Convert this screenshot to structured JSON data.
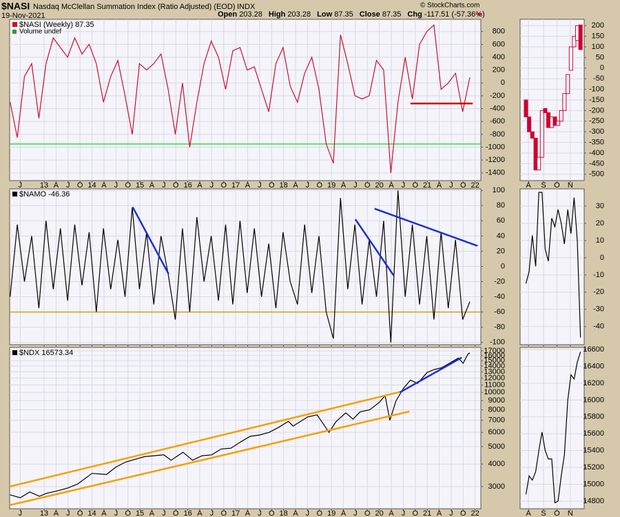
{
  "header": {
    "symbol": "$NASI",
    "title": "Nasdaq McClellan Summation Index (Ratio Adjusted) (EOD)",
    "exchange": "INDX",
    "date": "19-Nov-2021",
    "quote": [
      [
        "Open",
        "203.28"
      ],
      [
        "High",
        "203.28"
      ],
      [
        "Low",
        "87.35"
      ],
      [
        "Close",
        "87.35"
      ],
      [
        "Chg",
        "-117.51 (-57.36%)"
      ]
    ],
    "credit": "© StockCharts.com"
  },
  "x_axes": [
    {
      "xlim": [
        2012.28,
        2022.12
      ],
      "xticks": [
        {
          "value": 2012.5,
          "label": "J"
        },
        {
          "value": 2013,
          "label": "13"
        },
        {
          "value": 2013.25,
          "label": "A"
        },
        {
          "value": 2013.5,
          "label": "J"
        },
        {
          "value": 2013.75,
          "label": "O"
        },
        {
          "value": 2014,
          "label": "14"
        },
        {
          "value": 2014.25,
          "label": "A"
        },
        {
          "value": 2014.5,
          "label": "J"
        },
        {
          "value": 2014.75,
          "label": "O"
        },
        {
          "value": 2015,
          "label": "15"
        },
        {
          "value": 2015.25,
          "label": "A"
        },
        {
          "value": 2015.5,
          "label": "J"
        },
        {
          "value": 2015.75,
          "label": "O"
        },
        {
          "value": 2016,
          "label": "16"
        },
        {
          "value": 2016.25,
          "label": "A"
        },
        {
          "value": 2016.5,
          "label": "J"
        },
        {
          "value": 2016.75,
          "label": "O"
        },
        {
          "value": 2017,
          "label": "17"
        },
        {
          "value": 2017.25,
          "label": "A"
        },
        {
          "value": 2017.5,
          "label": "J"
        },
        {
          "value": 2017.75,
          "label": "O"
        },
        {
          "value": 2018,
          "label": "18"
        },
        {
          "value": 2018.25,
          "label": "A"
        },
        {
          "value": 2018.5,
          "label": "J"
        },
        {
          "value": 2018.75,
          "label": "O"
        },
        {
          "value": 2019,
          "label": "19"
        },
        {
          "value": 2019.25,
          "label": "A"
        },
        {
          "value": 2019.5,
          "label": "J"
        },
        {
          "value": 2019.75,
          "label": "O"
        },
        {
          "value": 2020,
          "label": "20"
        },
        {
          "value": 2020.25,
          "label": "A"
        },
        {
          "value": 2020.5,
          "label": "J"
        },
        {
          "value": 2020.75,
          "label": "O"
        },
        {
          "value": 2021,
          "label": "21"
        },
        {
          "value": 2021.25,
          "label": "A"
        },
        {
          "value": 2021.5,
          "label": "J"
        },
        {
          "value": 2021.75,
          "label": "O"
        },
        {
          "value": 2022,
          "label": "22"
        }
      ]
    },
    {
      "xlim": [
        2021.53,
        2021.913
      ],
      "xticks": [
        {
          "value": 2021.58,
          "label": "A"
        },
        {
          "value": 2021.67,
          "label": "S"
        },
        {
          "value": 2021.75,
          "label": "O"
        },
        {
          "value": 2021.83,
          "label": "N"
        }
      ]
    }
  ],
  "chart_data": [
    {
      "type": "line",
      "x_axis": 0,
      "x_labels": true,
      "ylim": [
        -1520,
        990
      ],
      "yticks": [
        -1400,
        -1200,
        -1000,
        -800,
        -600,
        -400,
        -200,
        0,
        200,
        400,
        600,
        800
      ],
      "grid": true,
      "series": [
        {
          "name": "$NASI (Weekly) 87.35",
          "color": "#c8102e",
          "x": [
            2012.29,
            2012.44,
            2012.59,
            2012.74,
            2012.89,
            2013.04,
            2013.19,
            2013.34,
            2013.49,
            2013.64,
            2013.79,
            2013.94,
            2014.09,
            2014.24,
            2014.39,
            2014.54,
            2014.69,
            2014.84,
            2014.99,
            2015.14,
            2015.29,
            2015.44,
            2015.59,
            2015.74,
            2015.89,
            2016.04,
            2016.19,
            2016.34,
            2016.49,
            2016.64,
            2016.79,
            2016.94,
            2017.09,
            2017.24,
            2017.39,
            2017.54,
            2017.69,
            2017.84,
            2017.99,
            2018.14,
            2018.29,
            2018.44,
            2018.59,
            2018.74,
            2018.89,
            2019.04,
            2019.19,
            2019.34,
            2019.49,
            2019.64,
            2019.79,
            2019.94,
            2020.09,
            2020.24,
            2020.39,
            2020.54,
            2020.69,
            2020.84,
            2020.99,
            2021.14,
            2021.29,
            2021.44,
            2021.59,
            2021.74,
            2021.89
          ],
          "values": [
            -300,
            -850,
            100,
            300,
            -550,
            300,
            700,
            550,
            400,
            700,
            450,
            600,
            300,
            -300,
            100,
            350,
            -200,
            -800,
            300,
            200,
            300,
            450,
            -100,
            -800,
            0,
            -1000,
            -300,
            300,
            650,
            400,
            -100,
            500,
            550,
            200,
            250,
            -100,
            -450,
            300,
            550,
            -50,
            -300,
            150,
            400,
            -100,
            -950,
            -1250,
            750,
            300,
            -200,
            -250,
            -200,
            350,
            200,
            -1400,
            -300,
            400,
            -250,
            600,
            800,
            900,
            -100,
            0,
            150,
            -450,
            87.35
          ]
        }
      ],
      "legend_notes": [
        {
          "text": "Volume undef",
          "color": "#339933"
        }
      ],
      "hlines": [
        {
          "y": -950,
          "color": "#33dd33"
        }
      ],
      "trendlines": [
        {
          "x": [
            2020.65,
            2021.95
          ],
          "y": [
            -320,
            -320
          ],
          "color": "#cc0000"
        }
      ]
    },
    {
      "type": "candlestick",
      "x_axis": 1,
      "x_labels": true,
      "ylim": [
        -530,
        230
      ],
      "yticks": [
        -500,
        -450,
        -400,
        -350,
        -300,
        -250,
        -200,
        -150,
        -100,
        -50,
        0,
        50,
        100,
        150,
        200
      ],
      "grid": true,
      "up_color": "#ffffff",
      "down_color": "#cc0033",
      "stroke": "#cc0033",
      "x": [
        2021.565,
        2021.584,
        2021.603,
        2021.623,
        2021.642,
        2021.661,
        2021.68,
        2021.699,
        2021.719,
        2021.738,
        2021.757,
        2021.776,
        2021.795,
        2021.815,
        2021.834,
        2021.853,
        2021.872,
        2021.891
      ],
      "open": [
        -150,
        -230,
        -300,
        -330,
        -480,
        -420,
        -190,
        -210,
        -280,
        -230,
        -270,
        -250,
        -200,
        -120,
        -10,
        100,
        130,
        203.28
      ],
      "close": [
        -230,
        -300,
        -330,
        -480,
        -420,
        -200,
        -210,
        -280,
        -230,
        -270,
        -250,
        -200,
        -120,
        -30,
        100,
        150,
        200,
        87.35
      ]
    },
    {
      "type": "line",
      "x_axis": 0,
      "x_labels": false,
      "ylim": [
        -103,
        102
      ],
      "yticks": [
        -100,
        -80,
        -60,
        -40,
        -20,
        0,
        20,
        40,
        60,
        80,
        100
      ],
      "grid": true,
      "series": [
        {
          "name": "$NAMO -46.36",
          "color": "#000000",
          "x": [
            2012.29,
            2012.44,
            2012.59,
            2012.74,
            2012.89,
            2013.04,
            2013.19,
            2013.34,
            2013.49,
            2013.64,
            2013.79,
            2013.94,
            2014.09,
            2014.24,
            2014.39,
            2014.54,
            2014.69,
            2014.84,
            2014.99,
            2015.14,
            2015.29,
            2015.44,
            2015.59,
            2015.74,
            2015.89,
            2016.04,
            2016.19,
            2016.34,
            2016.49,
            2016.64,
            2016.79,
            2016.94,
            2017.09,
            2017.24,
            2017.39,
            2017.54,
            2017.69,
            2017.84,
            2017.99,
            2018.14,
            2018.29,
            2018.44,
            2018.59,
            2018.74,
            2018.89,
            2019.04,
            2019.19,
            2019.34,
            2019.49,
            2019.64,
            2019.79,
            2019.94,
            2020.09,
            2020.24,
            2020.39,
            2020.54,
            2020.69,
            2020.84,
            2020.99,
            2021.14,
            2021.29,
            2021.44,
            2021.59,
            2021.74,
            2021.89
          ],
          "values": [
            -40,
            55,
            -20,
            40,
            -55,
            60,
            -30,
            50,
            -45,
            55,
            -25,
            45,
            -60,
            50,
            -30,
            35,
            -40,
            78,
            -30,
            45,
            -50,
            40,
            -10,
            -70,
            50,
            -60,
            65,
            -20,
            40,
            -45,
            55,
            -50,
            60,
            -35,
            50,
            -40,
            30,
            -55,
            45,
            -20,
            -50,
            55,
            -35,
            40,
            -60,
            -95,
            90,
            -30,
            55,
            -50,
            35,
            -40,
            60,
            -100,
            100,
            -40,
            55,
            -50,
            40,
            -70,
            45,
            -55,
            35,
            -70,
            -46.36
          ]
        }
      ],
      "hlines": [
        {
          "y": -60,
          "color": "#d4a017"
        }
      ],
      "trendlines": [
        {
          "x": [
            2014.85,
            2015.6
          ],
          "y": [
            78,
            -10
          ],
          "color": "#1a2fd6"
        },
        {
          "x": [
            2019.5,
            2020.3
          ],
          "y": [
            62,
            -12
          ],
          "color": "#1a2fd6"
        },
        {
          "x": [
            2019.9,
            2022.05
          ],
          "y": [
            76,
            27
          ],
          "color": "#1a2fd6"
        }
      ]
    },
    {
      "type": "line",
      "x_axis": 1,
      "x_labels": false,
      "ylim": [
        -50.5,
        40
      ],
      "yticks": [
        -40,
        -30,
        -20,
        -10,
        0,
        10,
        20,
        30
      ],
      "grid": true,
      "series": [
        {
          "color": "#000000",
          "x": [
            2021.565,
            2021.584,
            2021.603,
            2021.623,
            2021.642,
            2021.661,
            2021.68,
            2021.699,
            2021.719,
            2021.738,
            2021.757,
            2021.776,
            2021.795,
            2021.815,
            2021.834,
            2021.853,
            2021.872,
            2021.891
          ],
          "values": [
            -15,
            -8,
            13,
            -5,
            38,
            38,
            5,
            -2,
            23,
            18,
            28,
            20,
            8,
            28,
            14,
            35,
            10,
            -46.36
          ]
        }
      ]
    },
    {
      "type": "line",
      "x_axis": 0,
      "x_labels": true,
      "log_scale": true,
      "ylim": [
        2260,
        17760
      ],
      "yticks": [
        3000,
        4000,
        5000,
        6000,
        7000,
        8000,
        9000,
        10000,
        11000,
        12000,
        13000,
        14000,
        15000,
        16000,
        17000
      ],
      "grid": true,
      "series": [
        {
          "name": "$NDX 16573.34",
          "color": "#000000",
          "x": [
            2012.29,
            2012.5,
            2012.7,
            2012.9,
            2013.05,
            2013.3,
            2013.5,
            2013.7,
            2014.0,
            2014.3,
            2014.5,
            2014.7,
            2014.9,
            2015.1,
            2015.3,
            2015.5,
            2015.65,
            2015.9,
            2016.1,
            2016.3,
            2016.5,
            2016.7,
            2016.9,
            2017.1,
            2017.3,
            2017.5,
            2017.7,
            2017.9,
            2018.1,
            2018.2,
            2018.5,
            2018.7,
            2018.95,
            2019.1,
            2019.3,
            2019.45,
            2019.6,
            2019.8,
            2020.0,
            2020.12,
            2020.22,
            2020.35,
            2020.5,
            2020.65,
            2020.8,
            2021.0,
            2021.15,
            2021.3,
            2021.5,
            2021.65,
            2021.75,
            2021.85,
            2021.89
          ],
          "values": [
            2700,
            2600,
            2800,
            2650,
            2750,
            2850,
            2950,
            3100,
            3550,
            3500,
            3850,
            4100,
            4250,
            4400,
            4450,
            4500,
            4200,
            4650,
            4200,
            4450,
            4500,
            4850,
            4900,
            5300,
            5700,
            5800,
            6000,
            6400,
            6900,
            6500,
            7300,
            7500,
            6000,
            6900,
            7700,
            7100,
            7800,
            8000,
            8800,
            9600,
            7000,
            9000,
            10500,
            11700,
            11200,
            12900,
            13400,
            13700,
            14700,
            15500,
            14500,
            16300,
            16573.34
          ]
        }
      ],
      "trendlines": [
        {
          "x": [
            2012.28,
            2020.47
          ],
          "y": [
            3000,
            10110
          ],
          "color": "#f5a000"
        },
        {
          "x": [
            2012.28,
            2020.63
          ],
          "y": [
            2364,
            7834
          ],
          "color": "#f5a000"
        },
        {
          "x": [
            2020.43,
            2021.72
          ],
          "y": [
            10000,
            15600
          ],
          "color": "#1a2fd6"
        }
      ]
    },
    {
      "type": "line",
      "x_axis": 1,
      "x_labels": true,
      "ylim": [
        14710,
        16625
      ],
      "yticks": [
        14800,
        15000,
        15200,
        15400,
        15600,
        15800,
        16000,
        16200,
        16400,
        16600
      ],
      "grid": true,
      "series": [
        {
          "color": "#000000",
          "x": [
            2021.565,
            2021.584,
            2021.603,
            2021.623,
            2021.642,
            2021.661,
            2021.68,
            2021.699,
            2021.719,
            2021.738,
            2021.757,
            2021.776,
            2021.795,
            2021.815,
            2021.834,
            2021.853,
            2021.872,
            2021.891
          ],
          "values": [
            14880,
            15100,
            15050,
            15150,
            15400,
            15620,
            15400,
            15300,
            15300,
            14780,
            14800,
            15100,
            15350,
            16000,
            16300,
            16250,
            16450,
            16573.34
          ]
        }
      ]
    }
  ]
}
